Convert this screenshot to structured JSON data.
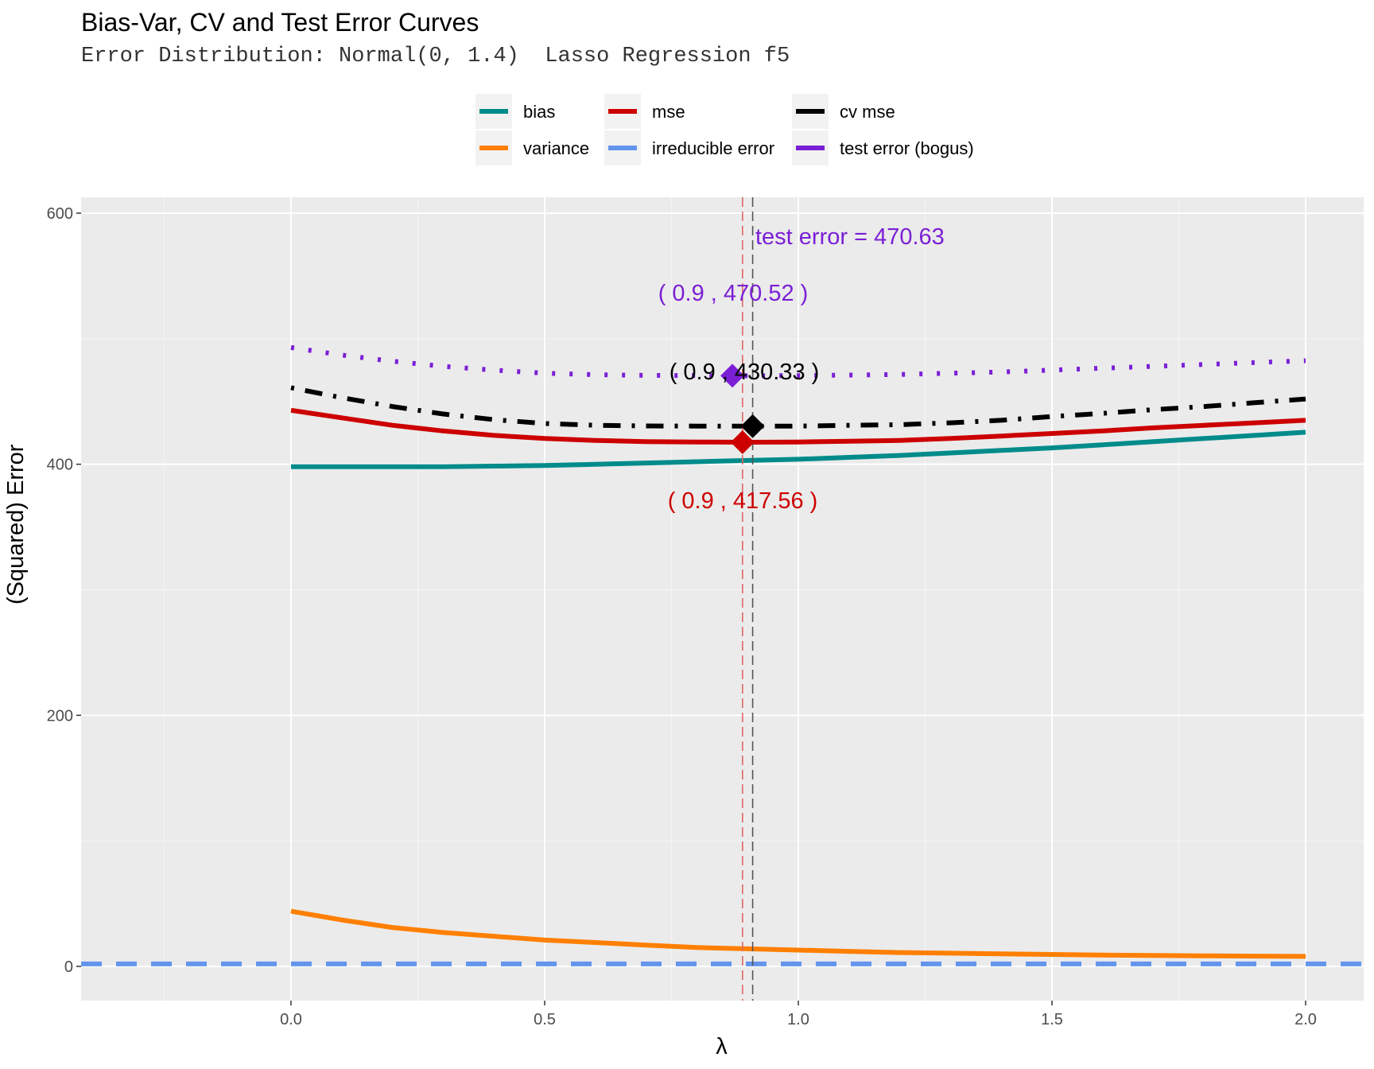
{
  "chart_data": {
    "type": "line",
    "title": "Bias-Var, CV and Test Error Curves",
    "subtitle": "Error Distribution: Normal(0, 1.4)  Lasso Regression f5",
    "xlabel": "λ",
    "ylabel": "(Squared) Error",
    "xlim": [
      -0.41,
      2.07
    ],
    "ylim": [
      -25,
      600
    ],
    "x_ticks": [
      0.0,
      0.5,
      1.0,
      1.5,
      2.0
    ],
    "x_tick_labels": [
      "0.0",
      "0.5",
      "1.0",
      "1.5",
      "2.0"
    ],
    "y_ticks": [
      0,
      200,
      400,
      600
    ],
    "y_tick_labels": [
      "0",
      "200",
      "400",
      "600"
    ],
    "grid": true,
    "legend_position": "top",
    "x": [
      0.0,
      0.1,
      0.2,
      0.3,
      0.4,
      0.5,
      0.6,
      0.7,
      0.8,
      0.9,
      1.0,
      1.1,
      1.2,
      1.3,
      1.4,
      1.5,
      1.6,
      1.7,
      1.8,
      1.9,
      2.0
    ],
    "series": [
      {
        "name": "bias",
        "color": "#008B8B",
        "dash": "solid",
        "values": [
          398,
          398,
          398,
          398,
          398.5,
          399,
          400,
          401,
          402,
          403,
          404,
          405.5,
          407,
          409,
          411,
          413,
          415.5,
          418,
          420.5,
          423,
          425.5
        ]
      },
      {
        "name": "variance",
        "color": "#FF7F00",
        "dash": "solid",
        "values": [
          44,
          37,
          31,
          27,
          24,
          21,
          19,
          17,
          15,
          14,
          13,
          12,
          11,
          10.5,
          10,
          9.5,
          9,
          8.7,
          8.4,
          8.2,
          8
        ]
      },
      {
        "name": "mse",
        "color": "#CD0000",
        "dash": "solid",
        "values": [
          443,
          437,
          431,
          426.5,
          423,
          420.5,
          419,
          418,
          417.7,
          417.56,
          417.7,
          418.3,
          419,
          420.5,
          422.5,
          424.5,
          426.5,
          429,
          431,
          433,
          435
        ]
      },
      {
        "name": "irreducible error",
        "color": "#6495ED",
        "dash": "dashed",
        "values": [
          1.96,
          1.96,
          1.96,
          1.96,
          1.96,
          1.96,
          1.96,
          1.96,
          1.96,
          1.96,
          1.96,
          1.96,
          1.96,
          1.96,
          1.96,
          1.96,
          1.96,
          1.96,
          1.96,
          1.96,
          1.96
        ]
      },
      {
        "name": "cv mse",
        "color": "#000000",
        "dash": "dotdash",
        "values": [
          461,
          453,
          446,
          440,
          435.5,
          432.5,
          431,
          430.5,
          430.4,
          430.33,
          430.4,
          431,
          431.5,
          433,
          435,
          438,
          440.5,
          443.5,
          446,
          449,
          452
        ]
      },
      {
        "name": "test error (bogus)",
        "color": "#7B1FD6",
        "dash": "dotted",
        "values": [
          493,
          487,
          482,
          478,
          475,
          472.5,
          471.3,
          470.8,
          470.6,
          470.52,
          470.6,
          471,
          471.5,
          472.5,
          473.5,
          475,
          476.5,
          478,
          479.5,
          481,
          482.5
        ]
      }
    ],
    "points": [
      {
        "series": "test error (bogus)",
        "x": 0.87,
        "y": 470.52,
        "color": "#7B1FD6",
        "label": "( 0.9 ,  470.52 )"
      },
      {
        "series": "cv mse",
        "x": 0.91,
        "y": 430.33,
        "color": "#000000",
        "label": "( 0.9 ,  430.33 )"
      },
      {
        "series": "mse",
        "x": 0.89,
        "y": 417.56,
        "color": "#CD0000",
        "label": "( 0.9 ,  417.56 )"
      }
    ],
    "vlines": [
      {
        "x": 0.89,
        "color": "#E06666"
      },
      {
        "x": 0.91,
        "color": "#555555"
      }
    ],
    "annotation": {
      "text": "test error =  470.63",
      "color": "#7B1FD6"
    }
  }
}
